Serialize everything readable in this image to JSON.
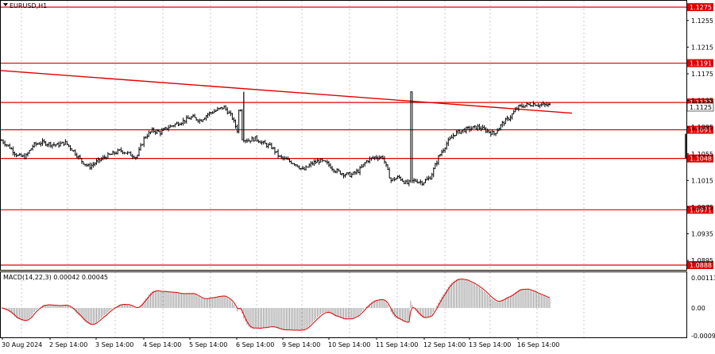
{
  "window": {
    "title": "EURUSD,H1"
  },
  "indicator": {
    "label": "MACD(14,22,3) 0.00042 0.00045"
  },
  "colors": {
    "level_line": "#e00000",
    "trend_line": "#e00000",
    "candle": "#000000",
    "grid": "#c8c8c8",
    "macd_hist": "#9a9a9a",
    "signal": "#e00000",
    "price_tag_fill": "#e00000",
    "price_tag_text": "#ffffff"
  },
  "chart_data": {
    "type": "candlestick",
    "symbol": "EURUSD",
    "timeframe": "H1",
    "price_axis_ticks": [
      "1.1255",
      "1.1215",
      "1.1175",
      "1.1135",
      "1.1095",
      "1.1055",
      "1.1015",
      "1.0975",
      "1.0935",
      "1.0895"
    ],
    "horizontal_levels": [
      "1.1275",
      "1.1191",
      "1.1132",
      "1.1091",
      "1.1048",
      "1.0971",
      "1.0888"
    ],
    "current_price": "1.1125",
    "time_labels": [
      "30 Aug 2024",
      "2 Sep 14:00",
      "3 Sep 14:00",
      "4 Sep 14:00",
      "5 Sep 14:00",
      "6 Sep 14:00",
      "9 Sep 14:00",
      "10 Sep 14:00",
      "11 Sep 14:00",
      "12 Sep 14:00",
      "13 Sep 14:00",
      "16 Sep 14:00"
    ],
    "trendline": {
      "start_price": 1.118,
      "end_price": 1.1116
    },
    "macd_axis_ticks": [
      "0.00113",
      "0.00",
      "-0.00092"
    ],
    "close_anchors": [
      1.1075,
      1.1065,
      1.1052,
      1.105,
      1.1068,
      1.1072,
      1.107,
      1.1068,
      1.1072,
      1.106,
      1.1045,
      1.1035,
      1.1043,
      1.105,
      1.1055,
      1.106,
      1.1055,
      1.105,
      1.108,
      1.109,
      1.1087,
      1.1095,
      1.11,
      1.1105,
      1.111,
      1.1105,
      1.1115,
      1.112,
      1.1125,
      1.111,
      1.108,
      1.1075,
      1.1078,
      1.107,
      1.1065,
      1.105,
      1.1045,
      1.104,
      1.103,
      1.104,
      1.1045,
      1.104,
      1.103,
      1.1025,
      1.1023,
      1.103,
      1.1045,
      1.105,
      1.105,
      1.1015,
      1.102,
      1.101,
      1.1015,
      1.1012,
      1.102,
      1.105,
      1.107,
      1.1085,
      1.109,
      1.1093,
      1.1095,
      1.109,
      1.1085,
      1.11,
      1.111,
      1.1125,
      1.1128,
      1.113,
      1.1128,
      1.1128
    ]
  }
}
